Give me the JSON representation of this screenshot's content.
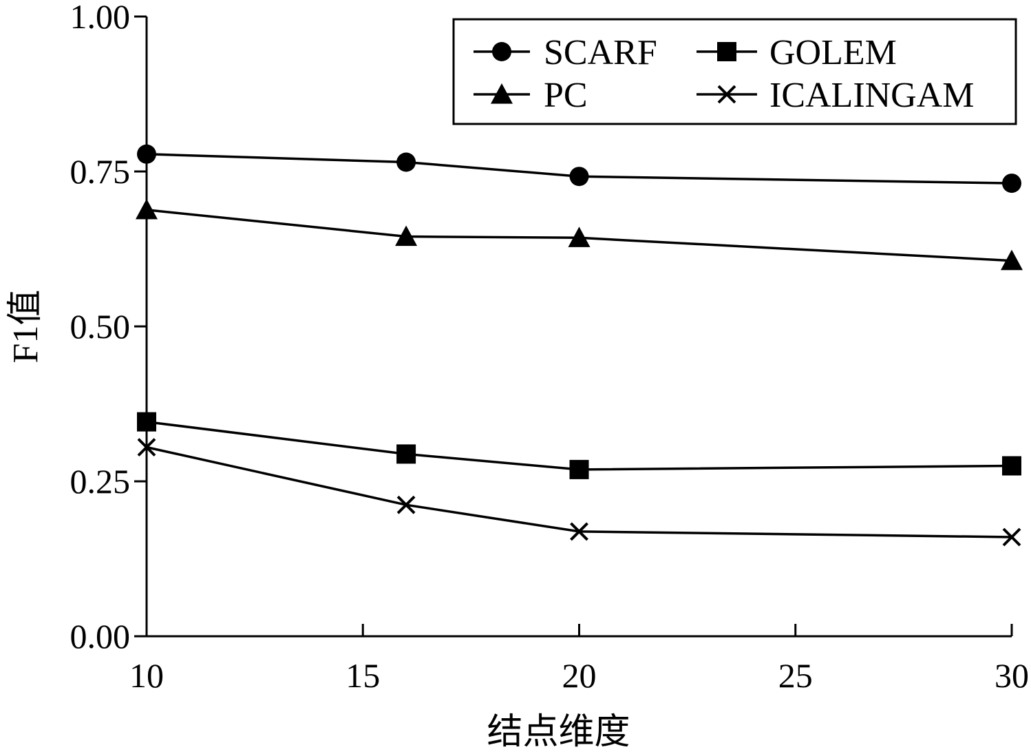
{
  "chart_data": {
    "type": "line",
    "xlabel": "结点维度",
    "ylabel": "F1值",
    "xlim": [
      10,
      30
    ],
    "ylim": [
      0.0,
      1.0
    ],
    "xticks": [
      10,
      15,
      20,
      25,
      30
    ],
    "yticks": [
      0.0,
      0.25,
      0.5,
      0.75,
      1.0
    ],
    "xtick_labels": [
      "10",
      "15",
      "20",
      "25",
      "30"
    ],
    "ytick_labels": [
      "0.00",
      "0.25",
      "0.50",
      "0.75",
      "1.00"
    ],
    "grid": false,
    "legend_position": "top-right",
    "x": [
      10,
      16,
      20,
      30
    ],
    "series": [
      {
        "name": "SCARF",
        "marker": "circle",
        "values": [
          0.778,
          0.765,
          0.742,
          0.731
        ]
      },
      {
        "name": "GOLEM",
        "marker": "square",
        "values": [
          0.346,
          0.294,
          0.269,
          0.275
        ]
      },
      {
        "name": "PC",
        "marker": "triangle",
        "values": [
          0.688,
          0.645,
          0.643,
          0.606
        ]
      },
      {
        "name": "ICALINGAM",
        "marker": "x",
        "values": [
          0.305,
          0.212,
          0.169,
          0.16
        ]
      }
    ]
  }
}
